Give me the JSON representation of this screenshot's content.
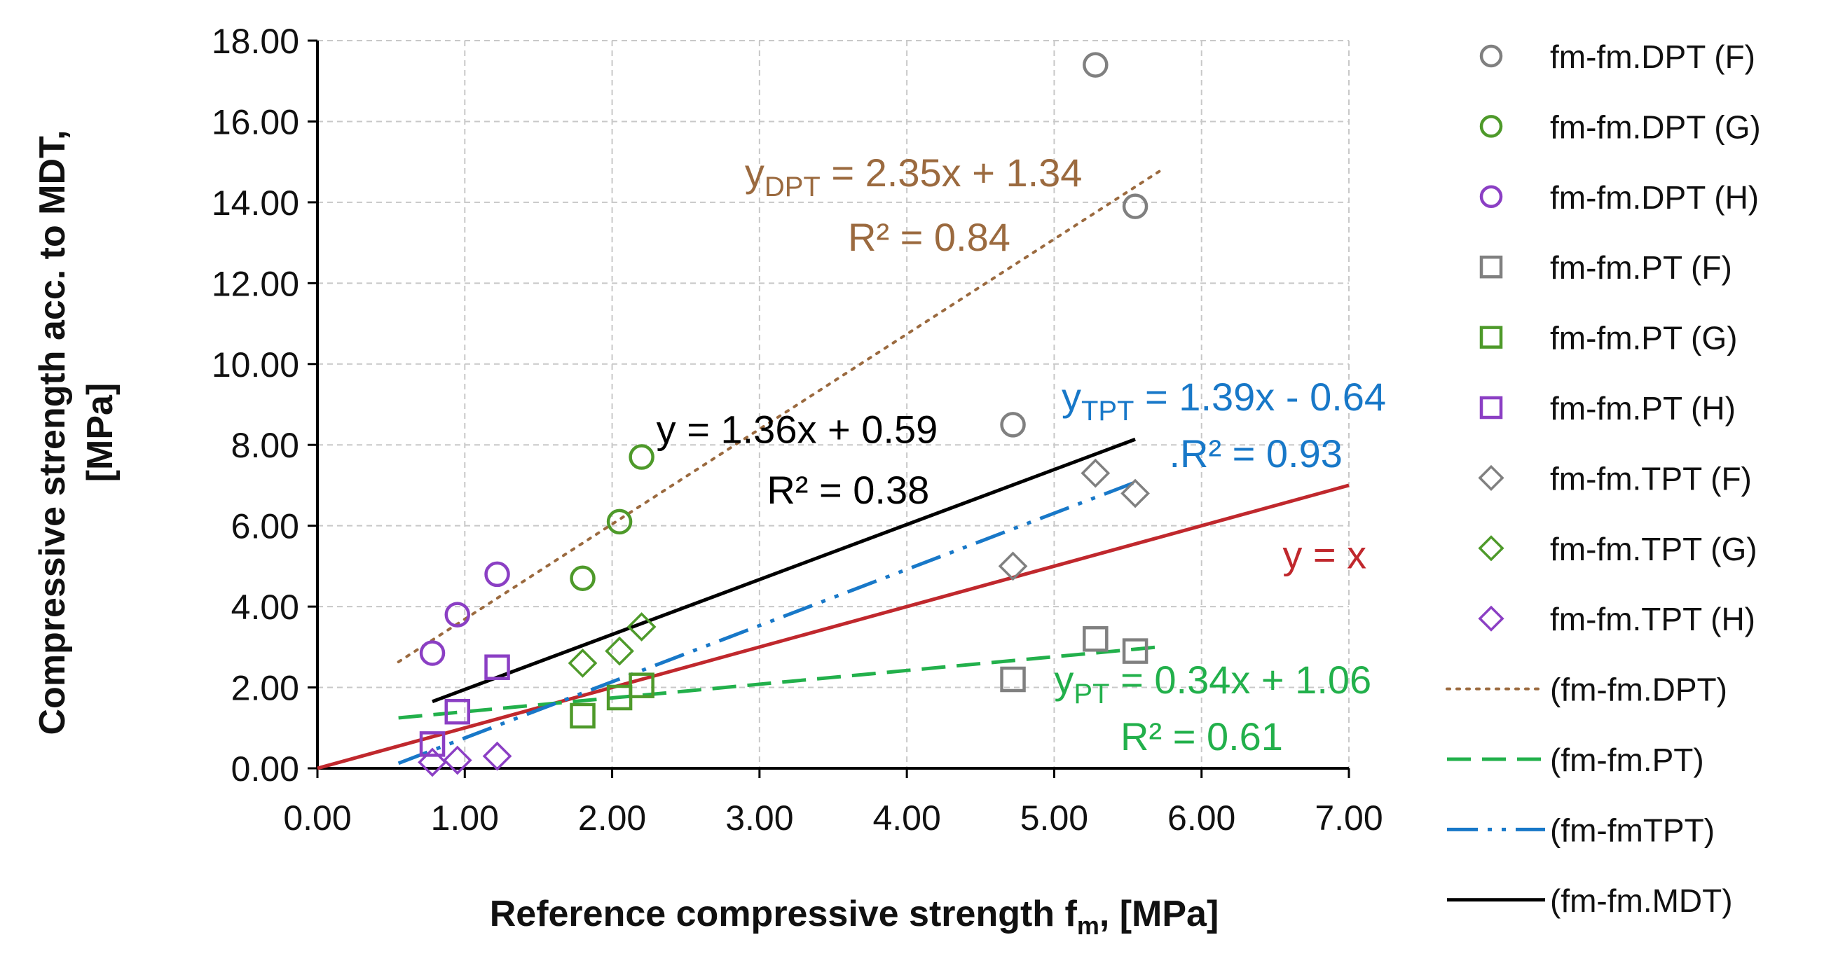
{
  "chart_data": {
    "type": "scatter",
    "xlabel": "Reference compressive strength fm, [MPa]",
    "xlabel_main": "Reference compressive strength f",
    "xlabel_sub": "m",
    "xlabel_tail": ", [MPa]",
    "ylabel_line1": "Compressive strength acc. to MDT,",
    "ylabel_line2": "[MPa]",
    "xlim": [
      0,
      7
    ],
    "ylim": [
      0,
      18
    ],
    "xticks": [
      0,
      1,
      2,
      3,
      4,
      5,
      6,
      7
    ],
    "yticks": [
      0,
      2,
      4,
      6,
      8,
      10,
      12,
      14,
      16,
      18
    ],
    "xtick_labels": [
      "0.00",
      "1.00",
      "2.00",
      "3.00",
      "4.00",
      "5.00",
      "6.00",
      "7.00"
    ],
    "ytick_labels": [
      "0.00",
      "2.00",
      "4.00",
      "6.00",
      "8.00",
      "10.00",
      "12.00",
      "14.00",
      "16.00",
      "18.00"
    ],
    "grid": true,
    "legend_position": "right",
    "series": [
      {
        "name": "fm-fm.DPT (F)",
        "marker": "circle",
        "color": "#808080",
        "points": [
          [
            4.72,
            8.5
          ],
          [
            5.28,
            17.4
          ],
          [
            5.55,
            13.9
          ]
        ]
      },
      {
        "name": "fm-fm.DPT (G)",
        "marker": "circle",
        "color": "#4e9a2a",
        "points": [
          [
            1.8,
            4.7
          ],
          [
            2.05,
            6.1
          ],
          [
            2.2,
            7.7
          ]
        ]
      },
      {
        "name": "fm-fm.DPT (H)",
        "marker": "circle",
        "color": "#8b3fc4",
        "points": [
          [
            0.78,
            2.85
          ],
          [
            0.95,
            3.8
          ],
          [
            1.22,
            4.8
          ]
        ]
      },
      {
        "name": "fm-fm.PT (F)",
        "marker": "square",
        "color": "#808080",
        "points": [
          [
            4.72,
            2.2
          ],
          [
            5.28,
            3.2
          ],
          [
            5.55,
            2.9
          ]
        ]
      },
      {
        "name": "fm-fm.PT (G)",
        "marker": "square",
        "color": "#4e9a2a",
        "points": [
          [
            1.8,
            1.3
          ],
          [
            2.05,
            1.75
          ],
          [
            2.2,
            2.05
          ]
        ]
      },
      {
        "name": "fm-fm.PT (H)",
        "marker": "square",
        "color": "#8b3fc4",
        "points": [
          [
            0.78,
            0.6
          ],
          [
            0.95,
            1.4
          ],
          [
            1.22,
            2.5
          ]
        ]
      },
      {
        "name": "fm-fm.TPT (F)",
        "marker": "diamond",
        "color": "#808080",
        "points": [
          [
            4.72,
            5.0
          ],
          [
            5.28,
            7.3
          ],
          [
            5.55,
            6.8
          ]
        ]
      },
      {
        "name": "fm-fm.TPT (G)",
        "marker": "diamond",
        "color": "#4e9a2a",
        "points": [
          [
            1.8,
            2.6
          ],
          [
            2.05,
            2.9
          ],
          [
            2.2,
            3.5
          ]
        ]
      },
      {
        "name": "fm-fm.TPT (H)",
        "marker": "diamond",
        "color": "#8b3fc4",
        "points": [
          [
            0.78,
            0.15
          ],
          [
            0.95,
            0.2
          ],
          [
            1.22,
            0.3
          ]
        ]
      }
    ],
    "trendlines": [
      {
        "name": "(fm-fm.DPT)",
        "style": "dotted",
        "color": "#9b6a3f",
        "x": [
          0.55,
          5.75
        ],
        "slope": 2.35,
        "intercept": 1.34
      },
      {
        "name": "(fm-fm.PT)",
        "style": "dashed",
        "color": "#22b04b",
        "x": [
          0.55,
          5.75
        ],
        "slope": 0.34,
        "intercept": 1.06
      },
      {
        "name": "(fm-fmTPT)",
        "style": "dashdot",
        "color": "#1878c8",
        "x": [
          0.55,
          5.55
        ],
        "slope": 1.39,
        "intercept": -0.64
      },
      {
        "name": "(fm-fm.MDT)",
        "style": "solid",
        "color": "#000000",
        "x": [
          0.78,
          5.55
        ],
        "slope": 1.36,
        "intercept": 0.59
      }
    ],
    "reference_line": {
      "label": "y = x",
      "color": "#c0282d",
      "x": [
        0,
        7
      ],
      "slope": 1,
      "intercept": 0
    },
    "annotations": [
      {
        "id": "dpt",
        "color": "#9b6a3f",
        "anchor_x": 2.9,
        "anchor_y": 14.4,
        "y_main": "y",
        "y_sub": "DPT",
        "rest": " = 2.35x + 1.34",
        "r2": "R² = 0.84",
        "r2_x": 3.6,
        "r2_y": 12.8
      },
      {
        "id": "tpt",
        "color": "#1878c8",
        "anchor_x": 5.05,
        "anchor_y": 8.85,
        "y_main": "y",
        "y_sub": "TPT",
        "rest": " = 1.39x - 0.64",
        "r2": ".R² = 0.93",
        "r2_x": 5.78,
        "r2_y": 7.45
      },
      {
        "id": "pt",
        "color": "#22b04b",
        "anchor_x": 5.0,
        "anchor_y": 1.85,
        "y_main": "y",
        "y_sub": "PT",
        "rest": " = 0.34x + 1.06",
        "r2": "R² = 0.61",
        "r2_x": 5.45,
        "r2_y": 0.45
      },
      {
        "id": "mdt",
        "color": "#000000",
        "anchor_x": 2.3,
        "anchor_y": 8.05,
        "y_main": "y",
        "y_sub": "",
        "rest": " = 1.36x + 0.59",
        "r2": "R² = 0.38",
        "r2_x": 3.05,
        "r2_y": 6.55
      },
      {
        "id": "ref",
        "color": "#c0282d",
        "anchor_x": 6.55,
        "anchor_y": 4.95,
        "y_main": "y = x",
        "y_sub": "",
        "rest": "",
        "r2": "",
        "r2_x": 0,
        "r2_y": 0
      }
    ]
  }
}
